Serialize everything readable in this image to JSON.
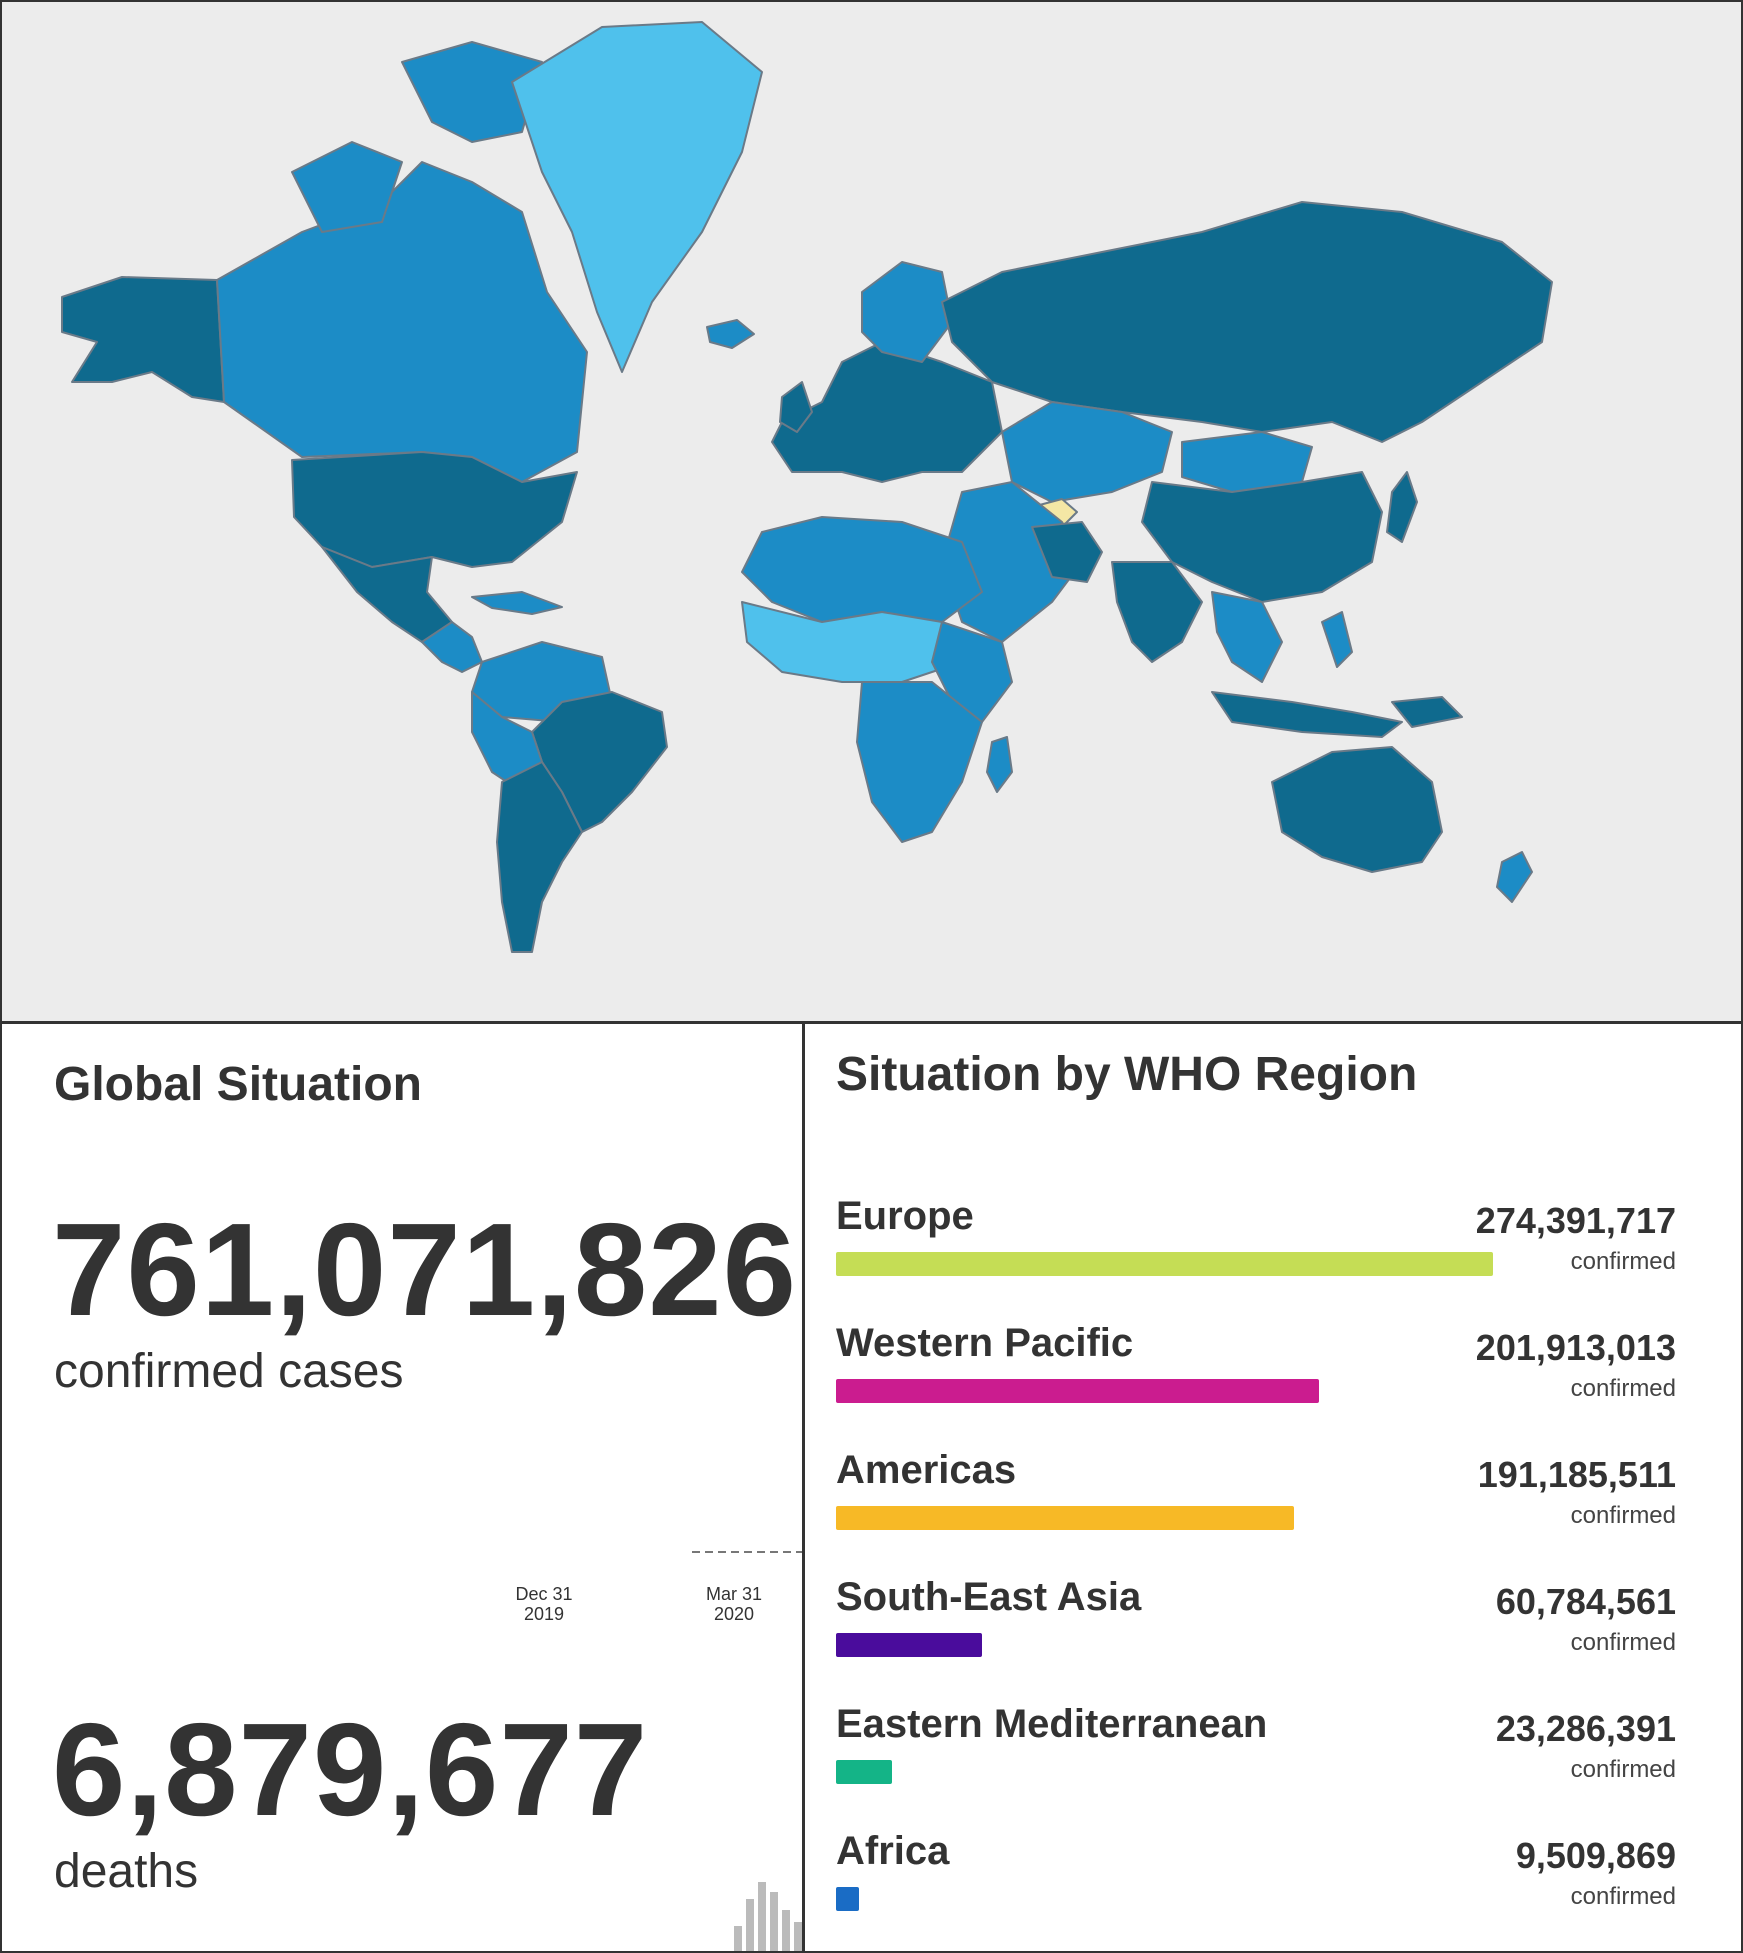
{
  "colors": {
    "ocean": "#ececec",
    "dark": "#0f6a8e",
    "mid": "#1c8cc6",
    "light": "#4fc1ec",
    "pale": "#8fd4f3",
    "yellow": "#f4e7a5"
  },
  "global": {
    "title": "Global Situation",
    "cases_value": "761,071,826",
    "cases_label": "confirmed cases",
    "deaths_value": "6,879,677",
    "deaths_label": "deaths",
    "ticks": [
      {
        "line1": "Dec 31",
        "line2": "2019"
      },
      {
        "line1": "Mar 31",
        "line2": "2020"
      }
    ]
  },
  "regions": {
    "title": "Situation by WHO Region",
    "unit": "confirmed",
    "max": 274391717,
    "items": [
      {
        "name": "Europe",
        "value": "274,391,717",
        "count": 274391717,
        "color": "#c5dd55"
      },
      {
        "name": "Western Pacific",
        "value": "201,913,013",
        "count": 201913013,
        "color": "#cb1c8f"
      },
      {
        "name": "Americas",
        "value": "191,185,511",
        "count": 191185511,
        "color": "#f7b926"
      },
      {
        "name": "South-East Asia",
        "value": "60,784,561",
        "count": 60784561,
        "color": "#4a0c9c"
      },
      {
        "name": "Eastern Mediterranean",
        "value": "23,286,391",
        "count": 23286391,
        "color": "#14b487"
      },
      {
        "name": "Africa",
        "value": "9,509,869",
        "count": 9509869,
        "color": "#1a6cc5"
      }
    ]
  }
}
